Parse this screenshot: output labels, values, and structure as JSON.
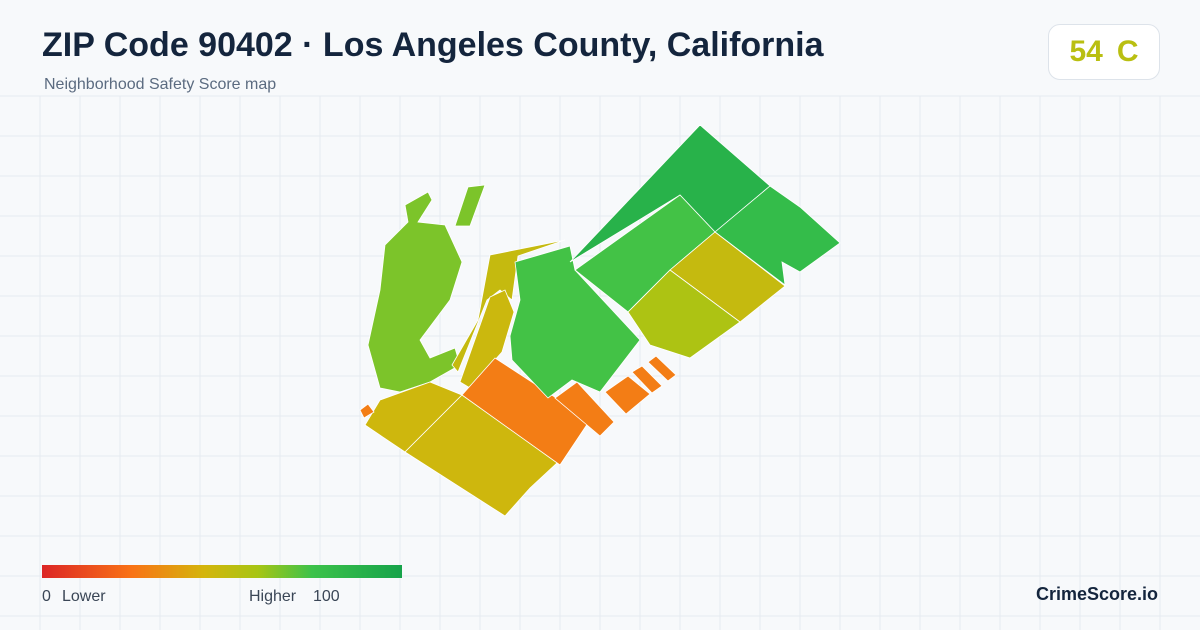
{
  "header": {
    "title": "ZIP Code 90402 · Los Angeles County, California",
    "subtitle": "Neighborhood Safety Score map"
  },
  "badge": {
    "score": 54,
    "grade": "C"
  },
  "map": {
    "regions": [
      {
        "score": 66
      },
      {
        "score": 66
      },
      {
        "score": 50
      },
      {
        "score": 48
      },
      {
        "score": 47
      },
      {
        "score": 47
      },
      {
        "score": 28
      },
      {
        "score": 74
      },
      {
        "score": 28
      },
      {
        "score": 28
      },
      {
        "score": 28
      },
      {
        "score": 28
      },
      {
        "score": 88
      },
      {
        "score": 74
      },
      {
        "score": 80
      },
      {
        "score": 50
      },
      {
        "score": 58
      },
      {
        "score": 28
      }
    ]
  },
  "legend": {
    "min": 0,
    "min_label": "Lower",
    "max_label": "Higher",
    "max": 100
  },
  "brand": "CrimeScore.io"
}
